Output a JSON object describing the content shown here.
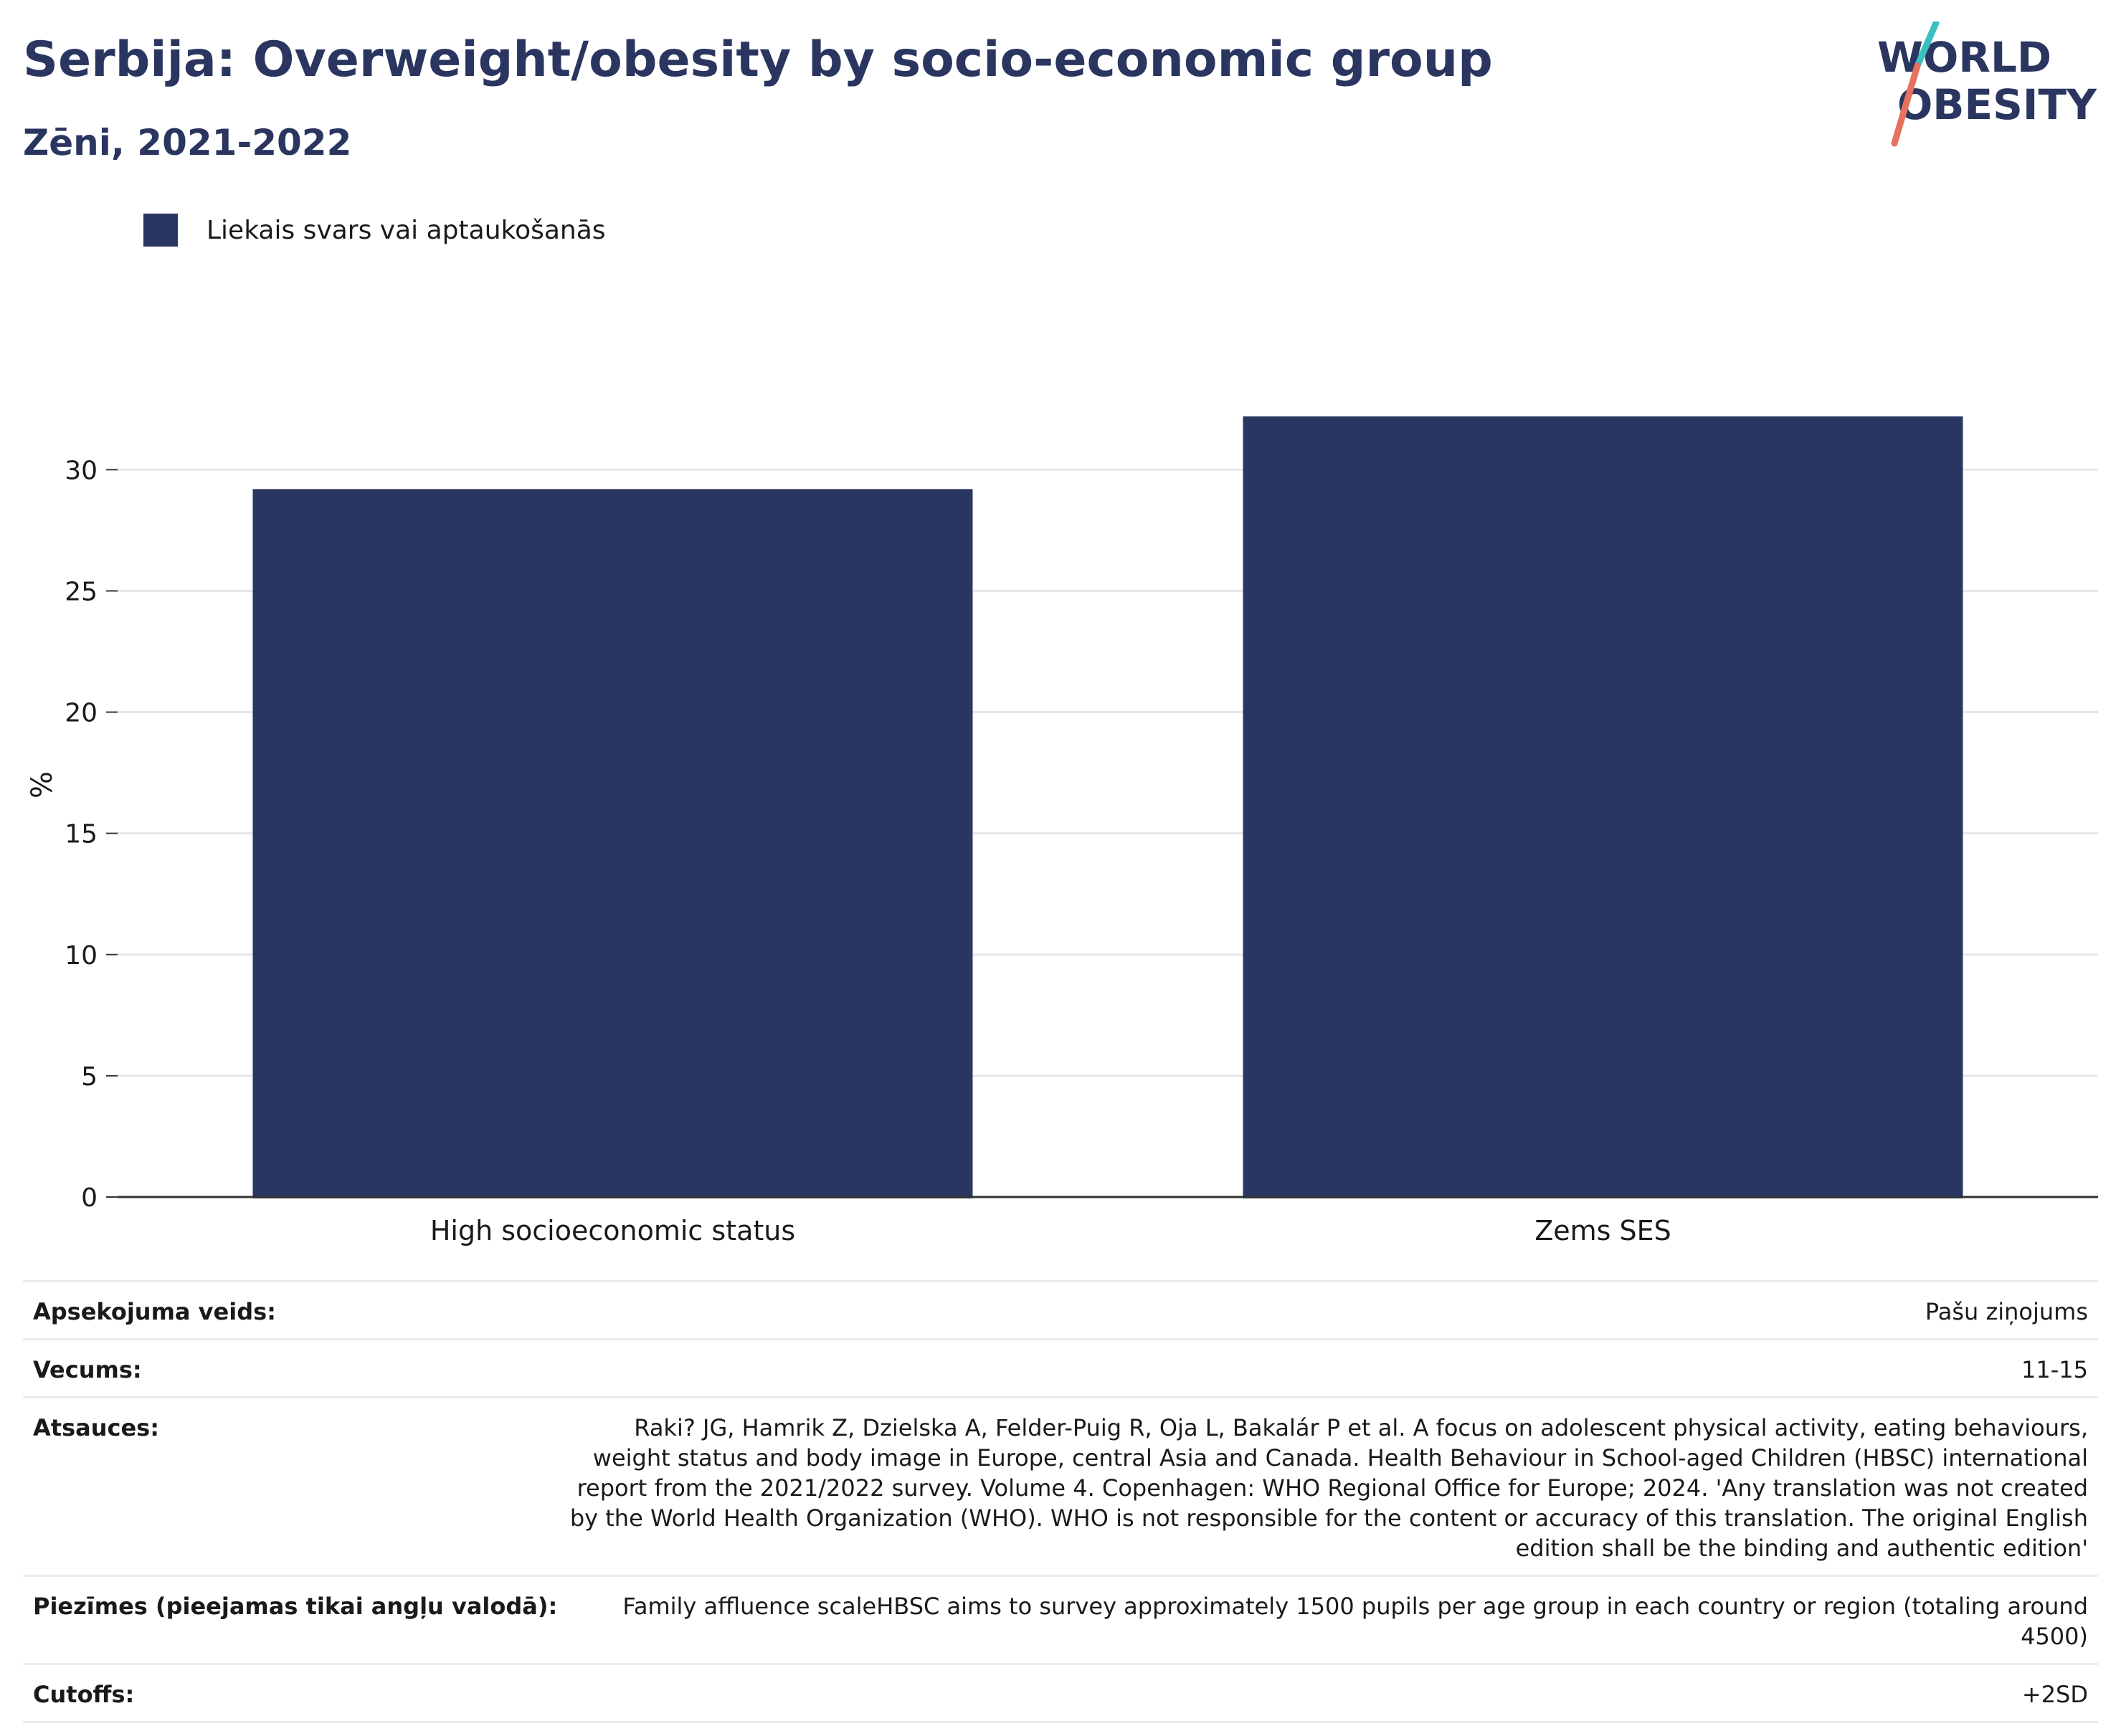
{
  "header": {
    "title": "Serbija: Overweight/obesity by socio-economic group",
    "subtitle": "Zēni, 2021-2022"
  },
  "logo": {
    "line1": "WORLD",
    "line2": "OBESITY",
    "colors": {
      "text": "#2a3560",
      "slash_top": "#3bbfbf",
      "slash_bottom": "#e8705e"
    }
  },
  "chart_data": {
    "type": "bar",
    "categories": [
      "High socioeconomic status",
      "Zems SES"
    ],
    "series": [
      {
        "name": "Liekais svars vai aptaukošanās",
        "values": [
          29.2,
          32.2
        ],
        "color": "#2a3662"
      }
    ],
    "xlabel": "",
    "ylabel": "%",
    "ylim": [
      0,
      34
    ],
    "yticks": [
      0,
      5,
      10,
      15,
      20,
      25,
      30
    ],
    "grid": true,
    "legend_position": "top-left"
  },
  "meta": {
    "rows": [
      {
        "label": "Apsekojuma veids:",
        "value": "Pašu ziņojums"
      },
      {
        "label": "Vecums:",
        "value": "11-15"
      },
      {
        "label": "Atsauces:",
        "value": "Raki? JG, Hamrik Z, Dzielska A, Felder-Puig R, Oja L, Bakalár P et al. A focus on adolescent physical activity, eating behaviours, weight status and body image in Europe, central Asia and Canada. Health Behaviour in School-aged Children (HBSC) international report from the 2021/2022 survey. Volume 4. Copenhagen: WHO Regional Office for Europe; 2024. 'Any translation was not created by the World Health Organization (WHO). WHO is not responsible for the content or accuracy of this translation. The original English edition shall be the binding and authentic edition'"
      },
      {
        "label": "Piezīmes (pieejamas tikai angļu valodā):",
        "value": "Family affluence scaleHBSC aims to survey approximately 1500 pupils per age group in each country or region (totaling around 4500)"
      },
      {
        "label": "Cutoffs:",
        "value": "+2SD"
      }
    ]
  }
}
